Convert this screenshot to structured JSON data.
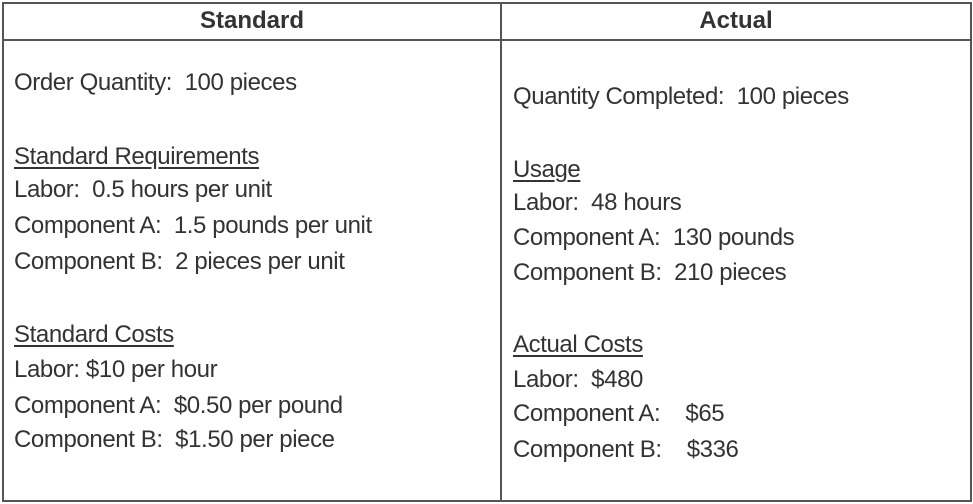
{
  "headers": {
    "standard": "Standard",
    "actual": "Actual"
  },
  "standard": {
    "order_quantity": "Order Quantity:  100 pieces",
    "requirements_title": "Standard Requirements",
    "requirements": [
      "Labor:  0.5 hours per unit",
      "Component A:  1.5 pounds per unit",
      "Component B:  2 pieces per unit"
    ],
    "costs_title": "Standard Costs",
    "costs": [
      "Labor: $10 per hour",
      "Component A:  $0.50 per pound",
      "Component B:  $1.50 per piece"
    ]
  },
  "actual": {
    "quantity_completed": "Quantity Completed:  100 pieces",
    "usage_title": "Usage",
    "usage": [
      "Labor:  48 hours",
      "Component A:  130 pounds",
      "Component B:  210 pieces"
    ],
    "costs_title": "Actual Costs",
    "costs": [
      "Labor:  $480",
      "Component A:    $65",
      "Component B:    $336"
    ]
  }
}
